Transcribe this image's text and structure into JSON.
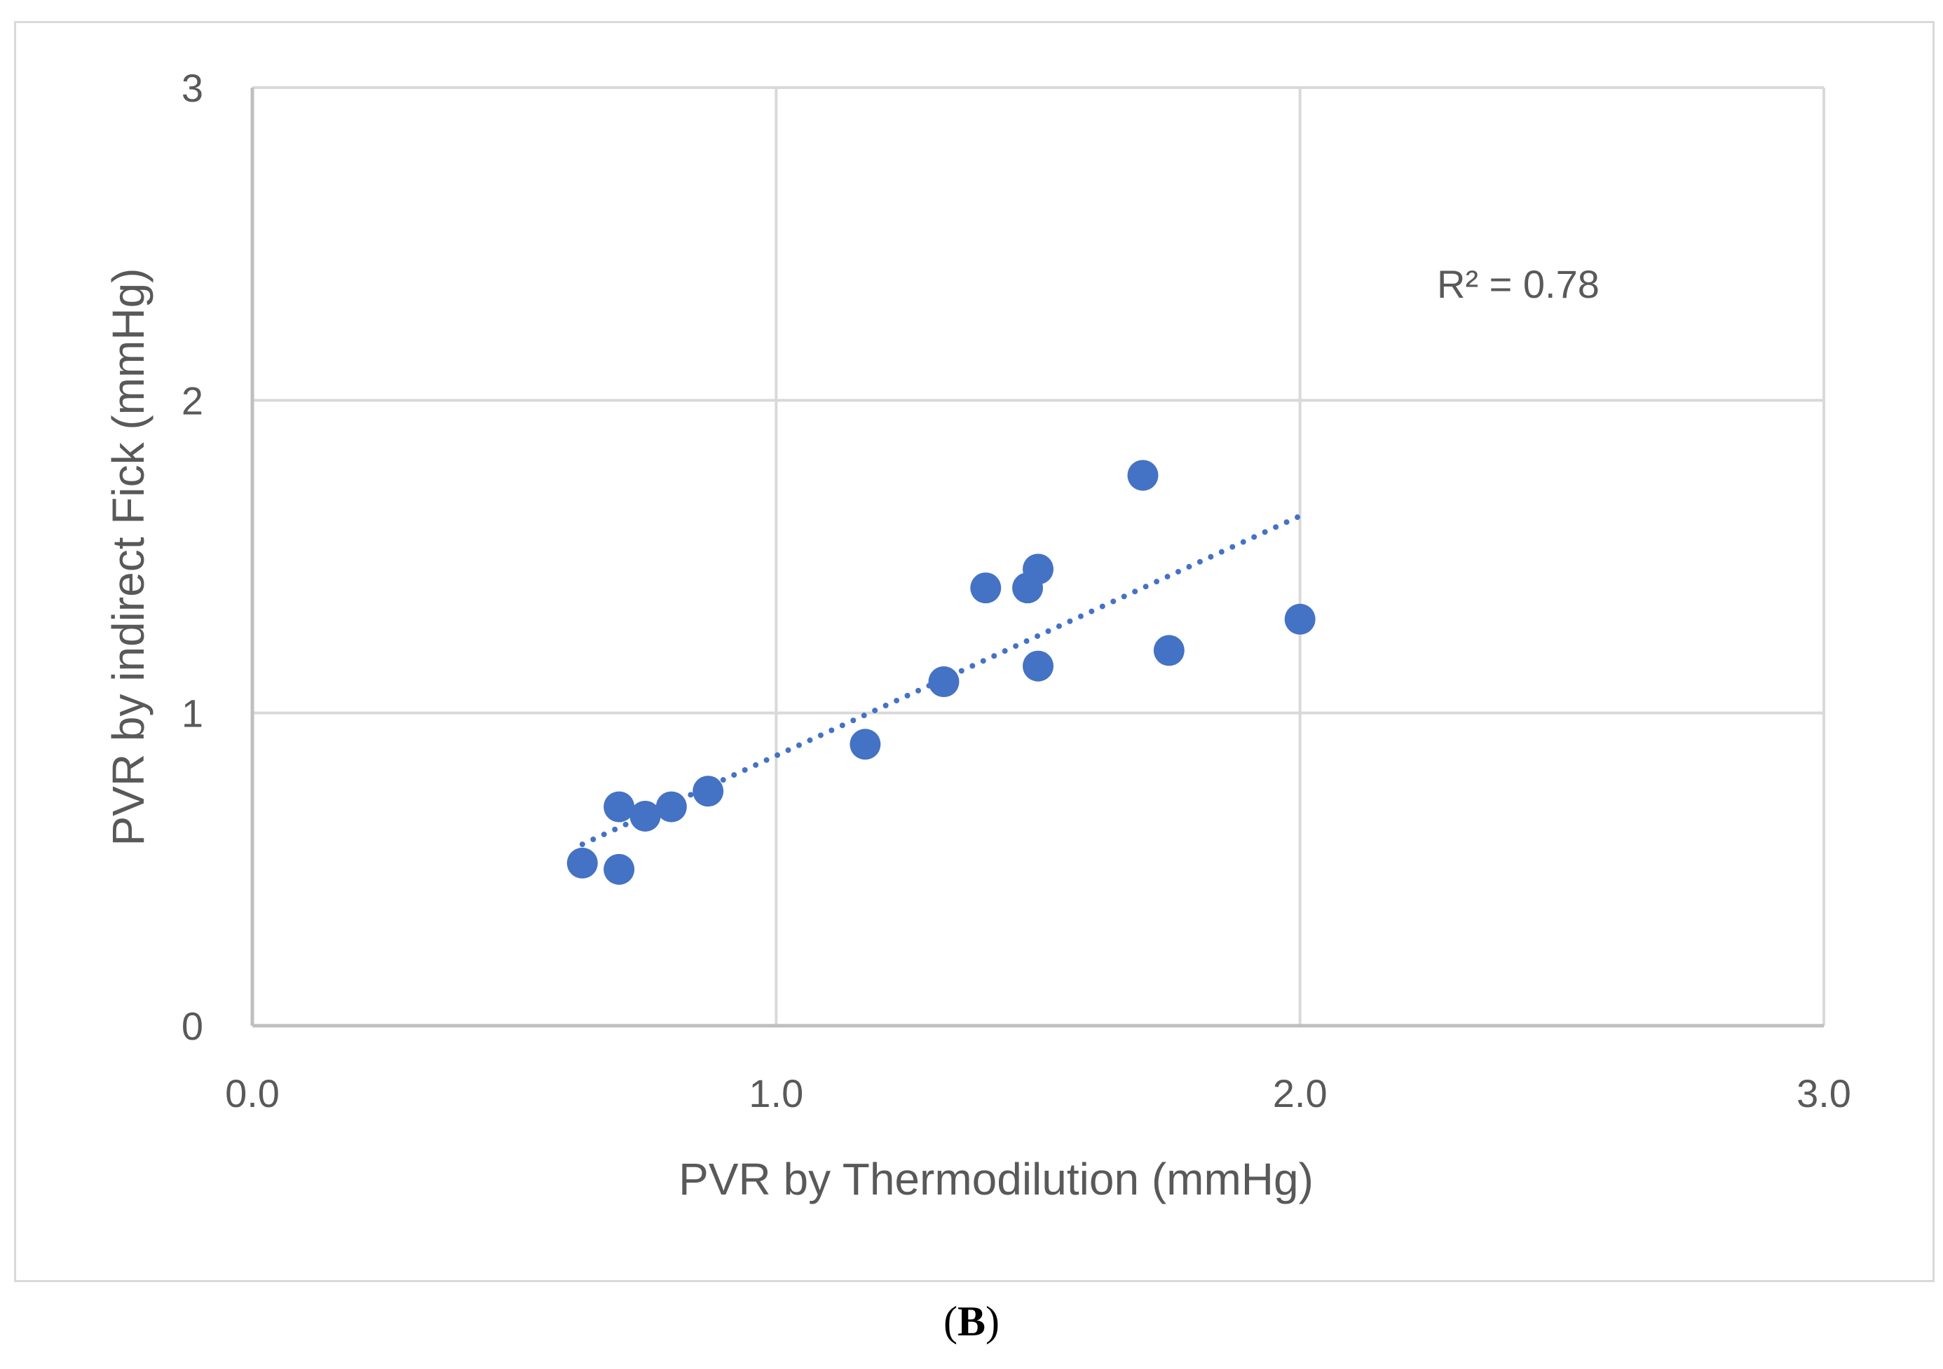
{
  "chart_data": {
    "type": "scatter",
    "title": "",
    "xlabel": "PVR by Thermodilution (mmHg)",
    "ylabel": "PVR by indirect Fick (mmHg)",
    "xlim": [
      0,
      3
    ],
    "ylim": [
      0,
      3
    ],
    "x_ticks": [
      0,
      1,
      2,
      3
    ],
    "x_tick_labels": [
      "0.0",
      "1.0",
      "2.0",
      "3.0"
    ],
    "y_ticks": [
      0,
      1,
      2,
      3
    ],
    "y_tick_labels": [
      "0",
      "1",
      "2",
      "3"
    ],
    "grid": true,
    "series": [
      {
        "name": "PVR",
        "color": "#4472c4",
        "points": [
          {
            "x": 0.63,
            "y": 0.52
          },
          {
            "x": 0.7,
            "y": 0.5
          },
          {
            "x": 0.7,
            "y": 0.7
          },
          {
            "x": 0.75,
            "y": 0.67
          },
          {
            "x": 0.8,
            "y": 0.7
          },
          {
            "x": 0.87,
            "y": 0.75
          },
          {
            "x": 1.17,
            "y": 0.9
          },
          {
            "x": 1.32,
            "y": 1.1
          },
          {
            "x": 1.4,
            "y": 1.4
          },
          {
            "x": 1.48,
            "y": 1.4
          },
          {
            "x": 1.5,
            "y": 1.46
          },
          {
            "x": 1.5,
            "y": 1.15
          },
          {
            "x": 1.7,
            "y": 1.76
          },
          {
            "x": 1.75,
            "y": 1.2
          },
          {
            "x": 2.0,
            "y": 1.3
          }
        ]
      }
    ],
    "trendline": {
      "style": "dotted",
      "color": "#4472c4",
      "x_range": [
        0.63,
        2.0
      ],
      "y_range": [
        0.58,
        1.63
      ]
    },
    "annotation": "R² = 0.78"
  },
  "panel_label": {
    "open": "(",
    "letter": "B",
    "close": ")"
  }
}
